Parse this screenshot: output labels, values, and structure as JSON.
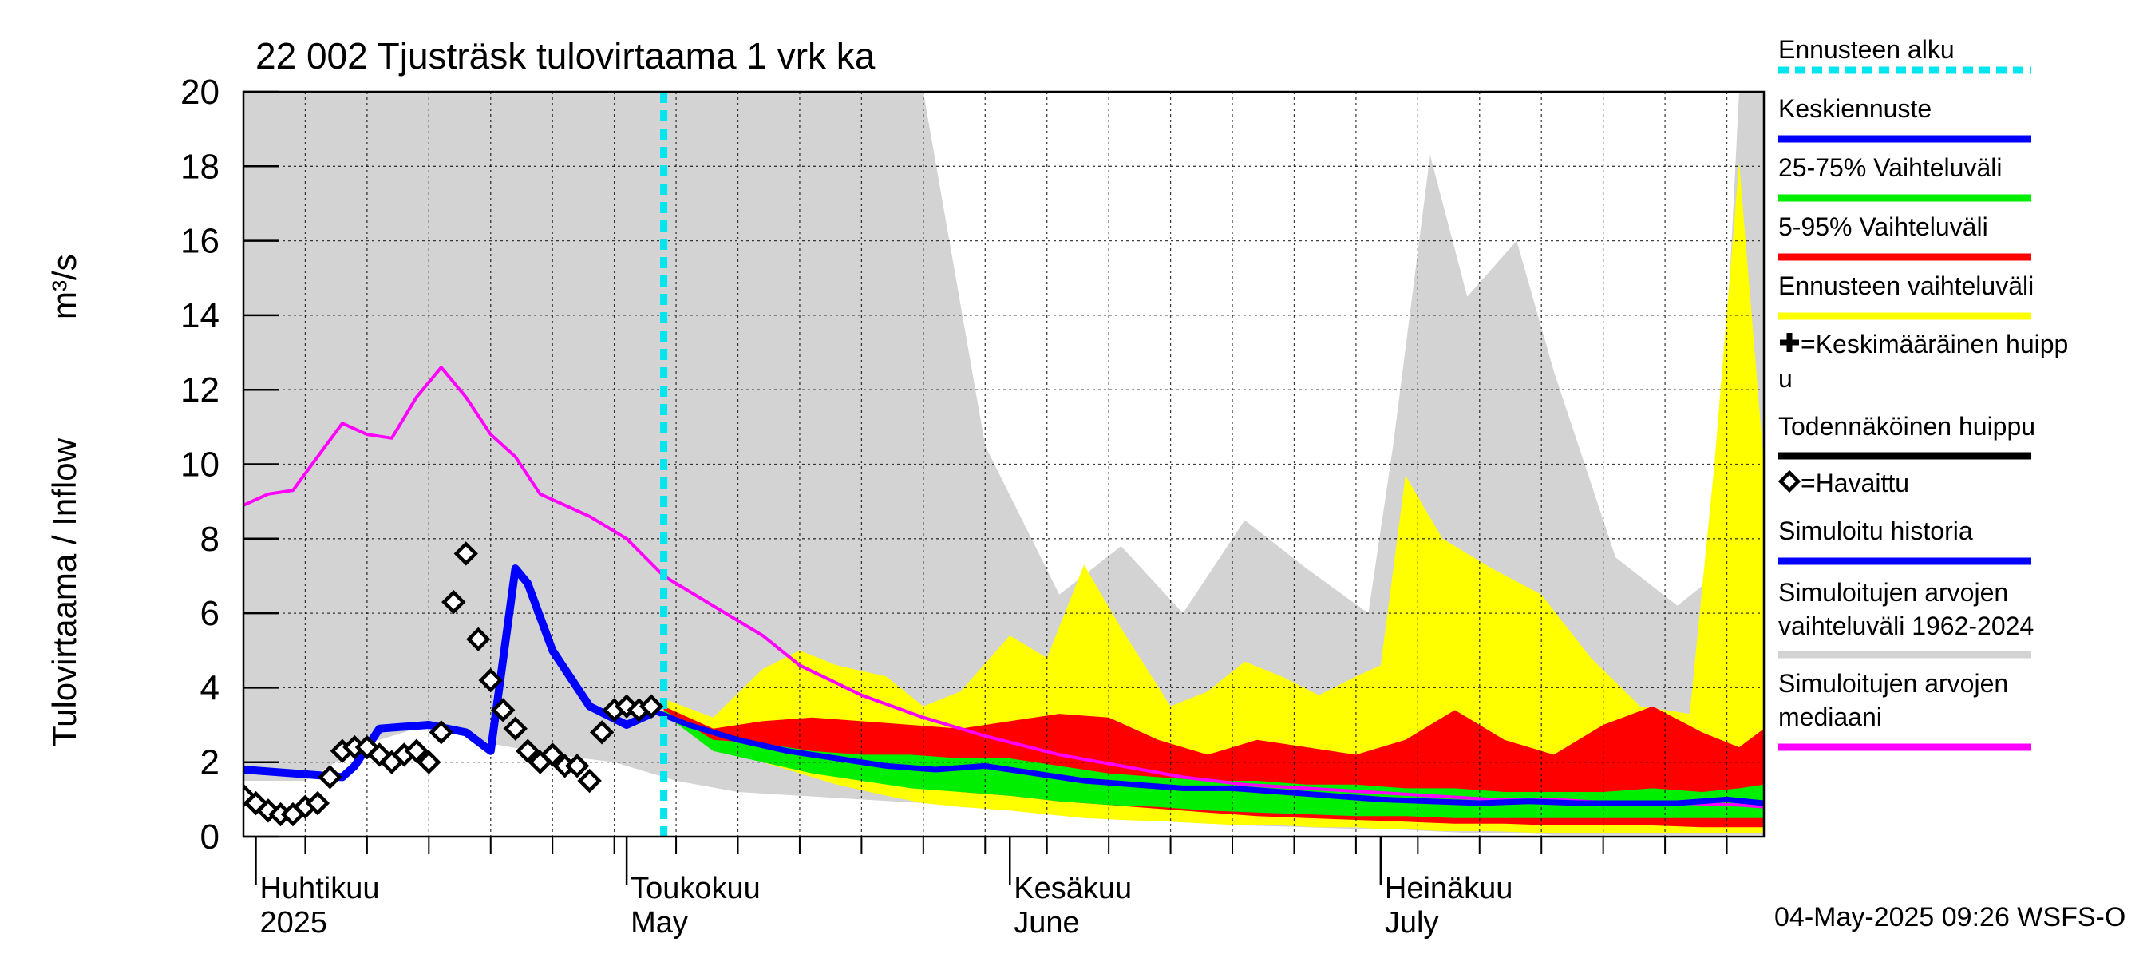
{
  "chart_data": {
    "type": "area",
    "title": "22 002 Tjusträsk tulovirtaama 1 vrk ka",
    "ylabel": "Tulovirtaama / Inflow",
    "yunit": "m³/s",
    "ylim": [
      0,
      20
    ],
    "yticks": [
      "0",
      "2",
      "4",
      "6",
      "8",
      "10",
      "12",
      "14",
      "16",
      "18",
      "20"
    ],
    "xlim": [
      "2025-03-31",
      "2025-08-01"
    ],
    "forecast_start": "2025-05-04",
    "grid": true,
    "legend_position": "right",
    "month_labels": [
      {
        "date": "2025-04-01",
        "line1": "Huhtikuu",
        "line2": "2025"
      },
      {
        "date": "2025-05-01",
        "line1": "Toukokuu",
        "line2": "May"
      },
      {
        "date": "2025-06-01",
        "line1": "Kesäkuu",
        "line2": "June"
      },
      {
        "date": "2025-07-01",
        "line1": "Heinäkuu",
        "line2": "July"
      }
    ],
    "footer": "04-May-2025 09:26 WSFS-O",
    "legend": [
      {
        "key": "forecast_start",
        "label": "Ennusteen alku",
        "color": "#00e5ee",
        "style": "dotted"
      },
      {
        "key": "mean_forecast",
        "label": "Keskiennuste",
        "color": "#0000ff"
      },
      {
        "key": "p25_75",
        "label": "25-75% Vaihteluväli",
        "color": "#00ee00"
      },
      {
        "key": "p5_95",
        "label": "5-95% Vaihteluväli",
        "color": "#ff0000"
      },
      {
        "key": "forecast_range",
        "label": "Ennusteen vaihteluväli",
        "color": "#ffff00"
      },
      {
        "key": "mean_peak",
        "label": "=Keskimääräinen huippu",
        "color": "#000000",
        "marker": "cross"
      },
      {
        "key": "probable_peak",
        "label": "Todennäköinen huippu",
        "color": "#000000"
      },
      {
        "key": "observed",
        "label": "=Havaittu",
        "color": "#000000",
        "marker": "diamond"
      },
      {
        "key": "simulated_history",
        "label": "Simuloitu historia",
        "color": "#0000ff"
      },
      {
        "key": "sim_range",
        "label": "Simuloitujen arvojen vaihteluväli 1962-2024",
        "color": "#d3d3d3"
      },
      {
        "key": "sim_median",
        "label": "Simuloitujen arvojen mediaani",
        "color": "#ff00ff"
      }
    ],
    "series": {
      "sim_range": {
        "x": [
          "2025-03-31",
          "2025-04-05",
          "2025-04-10",
          "2025-04-15",
          "2025-04-20",
          "2025-04-25",
          "2025-04-30",
          "2025-05-05",
          "2025-05-10",
          "2025-05-15",
          "2025-05-20",
          "2025-05-25",
          "2025-05-30",
          "2025-06-05",
          "2025-06-10",
          "2025-06-15",
          "2025-06-20",
          "2025-06-25",
          "2025-06-30",
          "2025-07-02",
          "2025-07-05",
          "2025-07-08",
          "2025-07-12",
          "2025-07-15",
          "2025-07-20",
          "2025-07-25",
          "2025-07-28",
          "2025-07-30",
          "2025-08-01"
        ],
        "upper": [
          20,
          20,
          20,
          20,
          20,
          20,
          20,
          20,
          20,
          20,
          20,
          20,
          10.5,
          6.5,
          7.8,
          6.0,
          8.5,
          7.2,
          6.0,
          10.5,
          18.3,
          14.5,
          16.0,
          12.5,
          7.5,
          6.2,
          7.0,
          20,
          20
        ],
        "lower": [
          1.5,
          1.5,
          2.5,
          3.0,
          2.5,
          2.2,
          2.0,
          1.5,
          1.2,
          1.1,
          1.0,
          0.9,
          0.8,
          0.6,
          0.5,
          0.4,
          0.3,
          0.25,
          0.2,
          0.2,
          0.15,
          0.1,
          0.1,
          0.05,
          0.05,
          0.05,
          0.05,
          0.05,
          0.05
        ]
      },
      "forecast_range": {
        "x": [
          "2025-05-04",
          "2025-05-08",
          "2025-05-12",
          "2025-05-15",
          "2025-05-18",
          "2025-05-22",
          "2025-05-25",
          "2025-05-28",
          "2025-06-01",
          "2025-06-04",
          "2025-06-07",
          "2025-06-10",
          "2025-06-14",
          "2025-06-17",
          "2025-06-20",
          "2025-06-23",
          "2025-06-26",
          "2025-06-29",
          "2025-07-01",
          "2025-07-03",
          "2025-07-06",
          "2025-07-10",
          "2025-07-14",
          "2025-07-18",
          "2025-07-22",
          "2025-07-26",
          "2025-07-28",
          "2025-07-30",
          "2025-08-01"
        ],
        "upper": [
          3.7,
          3.2,
          4.5,
          5.0,
          4.6,
          4.3,
          3.5,
          3.9,
          5.4,
          4.8,
          7.3,
          5.6,
          3.5,
          3.9,
          4.7,
          4.3,
          3.8,
          4.3,
          4.6,
          9.7,
          8.0,
          7.2,
          6.5,
          4.8,
          3.5,
          3.3,
          10.0,
          18.1,
          10.0
        ],
        "lower": [
          3.3,
          2.4,
          2.0,
          1.7,
          1.4,
          1.1,
          0.9,
          0.8,
          0.7,
          0.6,
          0.5,
          0.45,
          0.4,
          0.35,
          0.3,
          0.3,
          0.25,
          0.25,
          0.2,
          0.2,
          0.15,
          0.15,
          0.1,
          0.1,
          0.1,
          0.1,
          0.1,
          0.1,
          0.1
        ]
      },
      "p5_95": {
        "x": [
          "2025-05-04",
          "2025-05-08",
          "2025-05-12",
          "2025-05-16",
          "2025-05-20",
          "2025-05-24",
          "2025-05-28",
          "2025-06-01",
          "2025-06-05",
          "2025-06-09",
          "2025-06-13",
          "2025-06-17",
          "2025-06-21",
          "2025-06-25",
          "2025-06-29",
          "2025-07-03",
          "2025-07-07",
          "2025-07-11",
          "2025-07-15",
          "2025-07-19",
          "2025-07-23",
          "2025-07-27",
          "2025-07-30",
          "2025-08-01"
        ],
        "upper": [
          3.5,
          2.9,
          3.1,
          3.2,
          3.1,
          3.0,
          2.9,
          3.1,
          3.3,
          3.2,
          2.6,
          2.2,
          2.6,
          2.4,
          2.2,
          2.6,
          3.4,
          2.6,
          2.2,
          3.0,
          3.5,
          2.8,
          2.4,
          2.9
        ],
        "lower": [
          3.3,
          2.5,
          2.2,
          1.9,
          1.6,
          1.4,
          1.2,
          1.1,
          0.95,
          0.85,
          0.75,
          0.65,
          0.55,
          0.5,
          0.45,
          0.4,
          0.35,
          0.35,
          0.3,
          0.3,
          0.3,
          0.25,
          0.25,
          0.25
        ]
      },
      "p25_75": {
        "x": [
          "2025-05-04",
          "2025-05-08",
          "2025-05-12",
          "2025-05-16",
          "2025-05-20",
          "2025-05-24",
          "2025-05-28",
          "2025-06-01",
          "2025-06-05",
          "2025-06-09",
          "2025-06-13",
          "2025-06-17",
          "2025-06-21",
          "2025-06-25",
          "2025-06-29",
          "2025-07-03",
          "2025-07-07",
          "2025-07-11",
          "2025-07-15",
          "2025-07-19",
          "2025-07-23",
          "2025-07-27",
          "2025-07-30",
          "2025-08-01"
        ],
        "upper": [
          3.4,
          2.6,
          2.5,
          2.3,
          2.2,
          2.2,
          2.1,
          2.1,
          1.9,
          1.7,
          1.6,
          1.5,
          1.5,
          1.4,
          1.4,
          1.3,
          1.3,
          1.2,
          1.2,
          1.2,
          1.3,
          1.2,
          1.3,
          1.4
        ],
        "lower": [
          3.3,
          2.3,
          2.0,
          1.7,
          1.5,
          1.3,
          1.2,
          1.1,
          0.95,
          0.85,
          0.8,
          0.7,
          0.65,
          0.6,
          0.55,
          0.55,
          0.5,
          0.5,
          0.5,
          0.5,
          0.5,
          0.5,
          0.5,
          0.5
        ]
      },
      "mean_forecast": {
        "x": [
          "2025-05-03",
          "2025-05-06",
          "2025-05-10",
          "2025-05-14",
          "2025-05-18",
          "2025-05-22",
          "2025-05-26",
          "2025-05-30",
          "2025-06-03",
          "2025-06-07",
          "2025-06-11",
          "2025-06-15",
          "2025-06-19",
          "2025-06-23",
          "2025-06-27",
          "2025-07-01",
          "2025-07-05",
          "2025-07-09",
          "2025-07-13",
          "2025-07-17",
          "2025-07-21",
          "2025-07-25",
          "2025-07-29",
          "2025-08-01"
        ],
        "y": [
          3.4,
          3.0,
          2.6,
          2.3,
          2.1,
          1.9,
          1.8,
          1.9,
          1.7,
          1.5,
          1.4,
          1.3,
          1.3,
          1.2,
          1.1,
          1.0,
          0.95,
          0.9,
          0.95,
          0.9,
          0.9,
          0.9,
          1.0,
          0.9
        ]
      },
      "simulated_history": {
        "x": [
          "2025-03-31",
          "2025-04-04",
          "2025-04-08",
          "2025-04-09",
          "2025-04-11",
          "2025-04-15",
          "2025-04-18",
          "2025-04-20",
          "2025-04-22",
          "2025-04-23",
          "2025-04-25",
          "2025-04-28",
          "2025-05-01",
          "2025-05-03"
        ],
        "y": [
          1.8,
          1.7,
          1.6,
          1.9,
          2.9,
          3.0,
          2.8,
          2.3,
          7.2,
          6.8,
          5.0,
          3.5,
          3.0,
          3.3
        ]
      },
      "sim_median": {
        "x": [
          "2025-03-31",
          "2025-04-02",
          "2025-04-04",
          "2025-04-06",
          "2025-04-08",
          "2025-04-10",
          "2025-04-12",
          "2025-04-14",
          "2025-04-16",
          "2025-04-18",
          "2025-04-20",
          "2025-04-22",
          "2025-04-24",
          "2025-04-26",
          "2025-04-28",
          "2025-05-01",
          "2025-05-04",
          "2025-05-08",
          "2025-05-12",
          "2025-05-15",
          "2025-05-20",
          "2025-05-25",
          "2025-05-30",
          "2025-06-05",
          "2025-06-10",
          "2025-06-15",
          "2025-06-20",
          "2025-06-25",
          "2025-06-30",
          "2025-07-05",
          "2025-07-10",
          "2025-07-15",
          "2025-07-20",
          "2025-07-25",
          "2025-07-30",
          "2025-08-01"
        ],
        "y": [
          8.9,
          9.2,
          9.3,
          10.2,
          11.1,
          10.8,
          10.7,
          11.8,
          12.6,
          11.8,
          10.8,
          10.2,
          9.2,
          8.9,
          8.6,
          8.0,
          7.0,
          6.2,
          5.4,
          4.6,
          3.8,
          3.2,
          2.7,
          2.2,
          1.9,
          1.6,
          1.4,
          1.3,
          1.2,
          1.1,
          1.0,
          1.0,
          0.9,
          0.9,
          0.85,
          0.8
        ]
      },
      "observed": {
        "x": [
          "2025-03-31",
          "2025-04-01",
          "2025-04-02",
          "2025-04-03",
          "2025-04-04",
          "2025-04-05",
          "2025-04-06",
          "2025-04-07",
          "2025-04-08",
          "2025-04-09",
          "2025-04-10",
          "2025-04-11",
          "2025-04-12",
          "2025-04-13",
          "2025-04-14",
          "2025-04-15",
          "2025-04-16",
          "2025-04-17",
          "2025-04-18",
          "2025-04-19",
          "2025-04-20",
          "2025-04-21",
          "2025-04-22",
          "2025-04-23",
          "2025-04-24",
          "2025-04-25",
          "2025-04-26",
          "2025-04-27",
          "2025-04-28",
          "2025-04-29",
          "2025-04-30",
          "2025-05-01",
          "2025-05-02",
          "2025-05-03"
        ],
        "y": [
          1.1,
          0.9,
          0.7,
          0.6,
          0.6,
          0.8,
          0.9,
          1.6,
          2.3,
          2.4,
          2.4,
          2.2,
          2.0,
          2.2,
          2.3,
          2.0,
          2.8,
          6.3,
          7.6,
          5.3,
          4.2,
          3.4,
          2.9,
          2.3,
          2.0,
          2.2,
          1.9,
          1.9,
          1.5,
          2.8,
          3.4,
          3.5,
          3.4,
          3.5
        ]
      }
    }
  }
}
